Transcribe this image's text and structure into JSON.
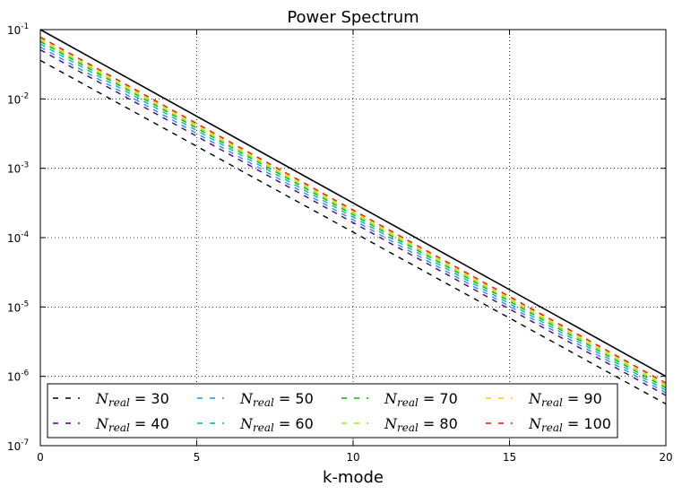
{
  "chart_data": {
    "type": "line",
    "title": "Power Spectrum",
    "xlabel": "k-mode",
    "ylabel": "",
    "xlim": [
      0,
      20
    ],
    "ylim": [
      1e-07,
      0.1
    ],
    "yscale": "log",
    "grid": true,
    "x_ticks": [
      "0",
      "5",
      "10",
      "15",
      "20"
    ],
    "y_ticks": [
      {
        "base": "10",
        "exp": "-7",
        "value": 1e-07
      },
      {
        "base": "10",
        "exp": "-6",
        "value": 1e-06
      },
      {
        "base": "10",
        "exp": "-5",
        "value": 1e-05
      },
      {
        "base": "10",
        "exp": "-4",
        "value": 0.0001
      },
      {
        "base": "10",
        "exp": "-3",
        "value": 0.001
      },
      {
        "base": "10",
        "exp": "-2",
        "value": 0.01
      },
      {
        "base": "10",
        "exp": "-1",
        "value": 0.1
      }
    ],
    "x": [
      0,
      20
    ],
    "reference": {
      "name": "",
      "color": "#000000",
      "style": "solid",
      "values": [
        0.1,
        1e-06
      ]
    },
    "legend_placement": "lower-center",
    "legend_columns": 4,
    "series": [
      {
        "name_prefix": "N",
        "name_sub": "real",
        "name_value": "= 30",
        "color": "#000000",
        "style": "dashed",
        "values": [
          0.036,
          4e-07
        ]
      },
      {
        "name_prefix": "N",
        "name_sub": "real",
        "name_value": "= 40",
        "color": "#4b0082",
        "style": "dashed",
        "values": [
          0.051,
          5.3e-07
        ]
      },
      {
        "name_prefix": "N",
        "name_sub": "real",
        "name_value": "= 50",
        "color": "#1e90ff",
        "style": "dashed",
        "values": [
          0.056,
          5.8e-07
        ]
      },
      {
        "name_prefix": "N",
        "name_sub": "real",
        "name_value": "= 60",
        "color": "#00b0c0",
        "style": "dashed",
        "values": [
          0.062,
          6.3e-07
        ]
      },
      {
        "name_prefix": "N",
        "name_sub": "real",
        "name_value": "= 70",
        "color": "#00bb00",
        "style": "dashed",
        "values": [
          0.067,
          6.8e-07
        ]
      },
      {
        "name_prefix": "N",
        "name_sub": "real",
        "name_value": "= 80",
        "color": "#88ee22",
        "style": "dashed",
        "values": [
          0.07,
          7.2e-07
        ]
      },
      {
        "name_prefix": "N",
        "name_sub": "real",
        "name_value": "= 90",
        "color": "#ffcc00",
        "style": "dashed",
        "values": [
          0.074,
          7.6e-07
        ]
      },
      {
        "name_prefix": "N",
        "name_sub": "real",
        "name_value": "= 100",
        "color": "#ee1111",
        "style": "dashed",
        "values": [
          0.078,
          8e-07
        ]
      }
    ]
  }
}
